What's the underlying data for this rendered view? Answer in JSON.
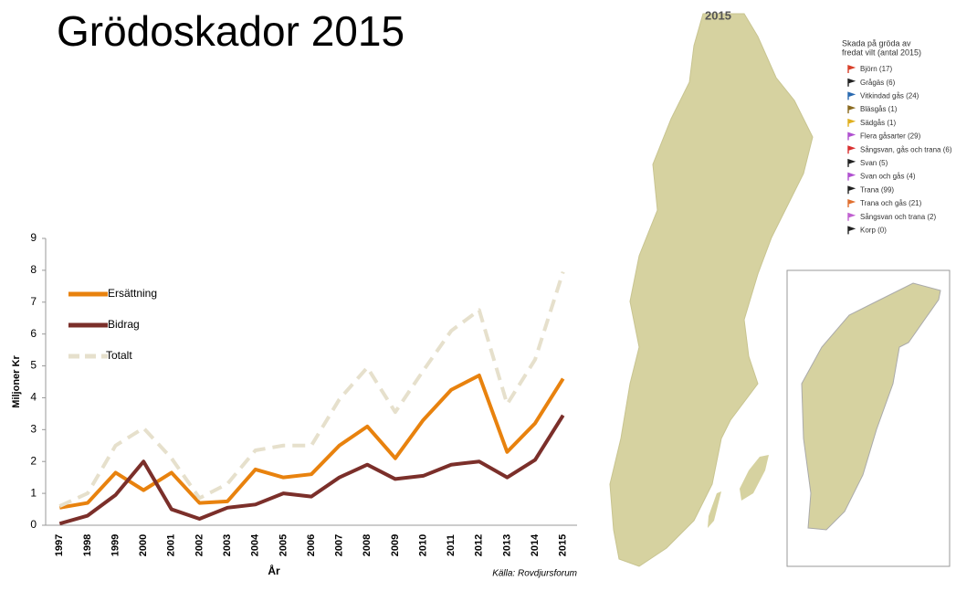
{
  "chart_data": {
    "type": "line",
    "title": "Grödoskador 2015",
    "y_label": "Miljoner Kr",
    "x_label": "År",
    "source": "Källa: Rovdjursforum",
    "categories": [
      "1997",
      "1998",
      "1999",
      "2000",
      "2001",
      "2002",
      "2003",
      "2004",
      "2005",
      "2006",
      "2007",
      "2008",
      "2009",
      "2010",
      "2011",
      "2012",
      "2013",
      "2014",
      "2015"
    ],
    "series": [
      {
        "name": "Ersättning",
        "color": "#e8820e",
        "dash": false,
        "values": [
          0.55,
          0.7,
          1.65,
          1.1,
          1.65,
          0.7,
          0.75,
          1.75,
          1.5,
          1.6,
          2.5,
          3.1,
          2.1,
          3.3,
          4.25,
          4.7,
          2.3,
          3.2,
          4.6
        ]
      },
      {
        "name": "Bidrag",
        "color": "#7b2f2a",
        "dash": false,
        "values": [
          0.05,
          0.3,
          0.95,
          2.0,
          0.5,
          0.2,
          0.55,
          0.65,
          1.0,
          0.9,
          1.5,
          1.9,
          1.45,
          1.55,
          1.9,
          2.0,
          1.5,
          2.05,
          3.45
        ]
      },
      {
        "name": "Totalt",
        "color": "#e6e0cc",
        "dash": true,
        "values": [
          0.6,
          1.0,
          2.5,
          3.05,
          2.1,
          0.85,
          1.3,
          2.35,
          2.5,
          2.5,
          3.95,
          4.95,
          3.55,
          4.85,
          6.1,
          6.75,
          3.8,
          5.2,
          7.95
        ]
      }
    ],
    "ylim": [
      0,
      9
    ],
    "yticks": [
      0,
      1,
      2,
      3,
      4,
      5,
      6,
      7,
      8,
      9
    ],
    "map": {
      "year": "2015",
      "legend_title": [
        "Skada på gröda av",
        "fredat vilt (antal 2015)"
      ],
      "items": [
        {
          "label": "Björn (17)",
          "color": "#d8402a"
        },
        {
          "label": "Grågäs (6)",
          "color": "#222222"
        },
        {
          "label": "Vitkindad gås (24)",
          "color": "#2a6ab0"
        },
        {
          "label": "Bläsgås (1)",
          "color": "#8a6a20"
        },
        {
          "label": "Sädgås (1)",
          "color": "#e0b020"
        },
        {
          "label": "Flera gåsarter (29)",
          "color": "#b050d0"
        },
        {
          "label": "Sångsvan, gås och trana (6)",
          "color": "#d83030"
        },
        {
          "label": "Svan (5)",
          "color": "#222222"
        },
        {
          "label": "Svan och gås (4)",
          "color": "#b050d0"
        },
        {
          "label": "Trana (99)",
          "color": "#222222"
        },
        {
          "label": "Trana och gås (21)",
          "color": "#e07030"
        },
        {
          "label": "Sångsvan och trana (2)",
          "color": "#c060d0"
        },
        {
          "label": "Korp (0)",
          "color": "#222222"
        }
      ]
    }
  }
}
